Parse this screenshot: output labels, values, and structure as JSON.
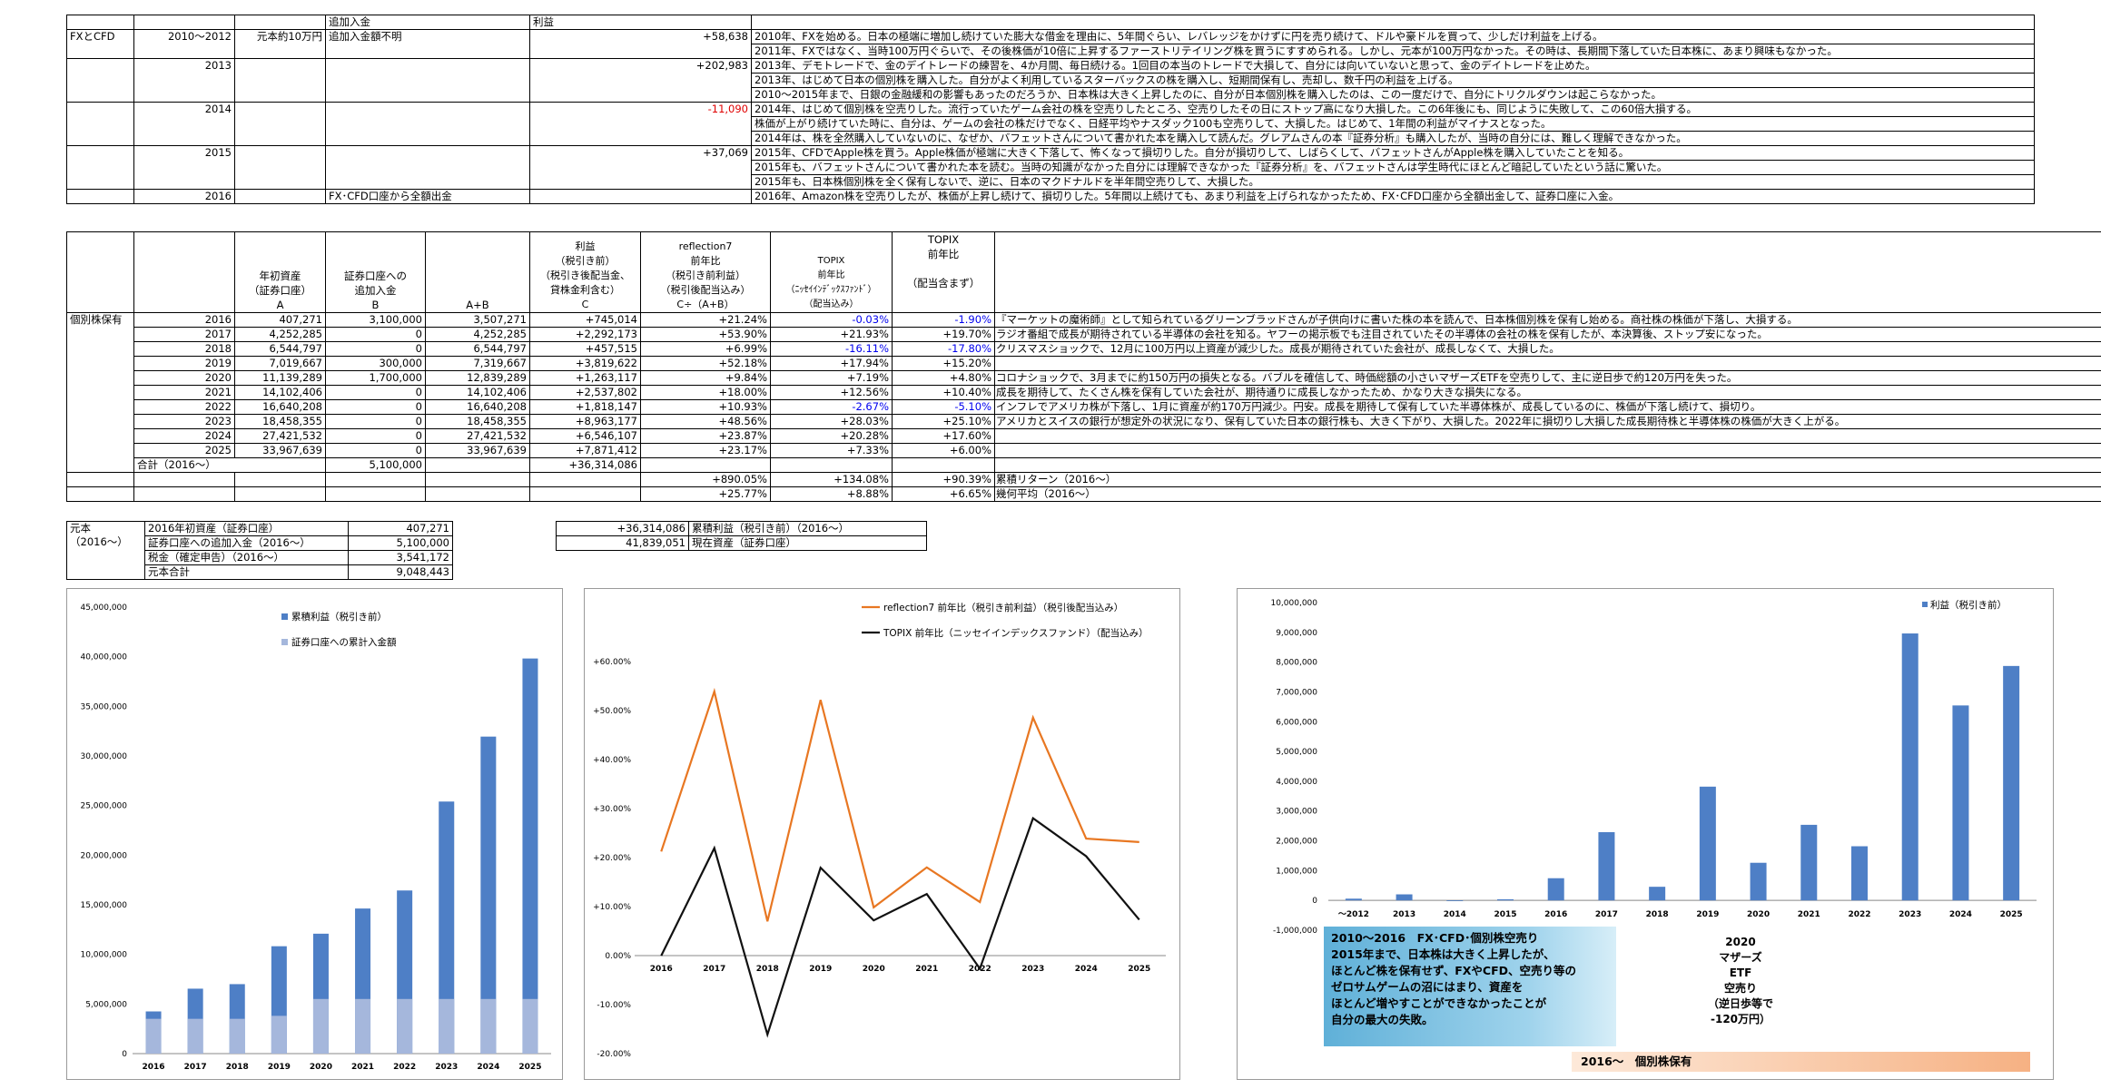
{
  "t1": {
    "head": {
      "a": "追加入金",
      "b": "利益"
    },
    "rows": [
      {
        "cat": "FXとCFD",
        "year": "2010～2012",
        "base": "元本約10万円",
        "extra": "追加入金額不明",
        "profit": "+58,638",
        "lines": [
          "2010年、FXを始める。日本の極端に増加し続けていた膨大な借金を理由に、5年間ぐらい、レバレッジをかけずに円を売り続けて、ドルや豪ドルを買って、少しだけ利益を上げる。",
          "2011年、FXではなく、当時100万円ぐらいで、その後株価が10倍に上昇するファーストリテイリング株を買うにすすめられる。しかし、元本が100万円なかった。その時は、長期間下落していた日本株に、あまり興味もなかった。"
        ]
      },
      {
        "cat": "",
        "year": "2013",
        "base": "",
        "extra": "",
        "profit": "+202,983",
        "lines": [
          "2013年、デモトレードで、金のデイトレードの練習を、4か月間、毎日続ける。1回目の本当のトレードで大損して、自分には向いていないと思って、金のデイトレードを止めた。",
          "2013年、はじめて日本の個別株を購入した。自分がよく利用しているスターバックスの株を購入し、短期間保有し、売却し、数千円の利益を上げる。",
          "2010～2015年まで、日銀の金融緩和の影響もあったのだろうか、日本株は大きく上昇したのに、自分が日本個別株を購入したのは、この一度だけで、自分にトリクルダウンは起こらなかった。"
        ]
      },
      {
        "cat": "",
        "year": "2014",
        "base": "",
        "extra": "",
        "profit": "-11,090",
        "lines": [
          "2014年、はじめて個別株を空売りした。流行っていたゲーム会社の株を空売りしたところ、空売りしたその日にストップ高になり大損した。この6年後にも、同じように失敗して、この60倍大損する。",
          "株価が上がり続けていた時に、自分は、ゲームの会社の株だけでなく、日経平均やナスダック100も空売りして、大損した。はじめて、1年間の利益がマイナスとなった。",
          "2014年は、株を全然購入していないのに、なぜか、バフェットさんについて書かれた本を購入して読んだ。グレアムさんの本『証券分析』も購入したが、当時の自分には、難しく理解できなかった。"
        ]
      },
      {
        "cat": "",
        "year": "2015",
        "base": "",
        "extra": "",
        "profit": "+37,069",
        "lines": [
          "2015年、CFDでApple株を買う。Apple株価が極端に大きく下落して、怖くなって損切りした。自分が損切りして、しばらくして、バフェットさんがApple株を購入していたことを知る。",
          "2015年も、バフェットさんについて書かれた本を読む。当時の知識がなかった自分には理解できなかった『証券分析』を、バフェットさんは学生時代にほとんど暗記していたという話に驚いた。",
          "2015年も、日本株個別株を全く保有しないで、逆に、日本のマクドナルドを半年間空売りして、大損した。"
        ]
      },
      {
        "cat": "",
        "year": "2016",
        "base": "",
        "extra": "FX･CFD口座から全額出金",
        "profit": "",
        "lines": [
          "2016年、Amazon株を空売りしたが、株価が上昇し続けて、損切りした。5年間以上続けても、あまり利益を上げられなかったため、FX･CFD口座から全額出金して、証券口座に入金。"
        ]
      }
    ]
  },
  "t2": {
    "h": {
      "c1": "年初資産\n（証券口座）\nA",
      "c2": "証券口座への\n追加入金\nB",
      "c3": "A+B",
      "c4": "利益\n（税引き前）\n（税引き後配当金、\n貸株金利含む）\nC",
      "c5": "reflection7\n前年比\n（税引き前利益）\n（税引後配当込み）\nC÷（A+B）",
      "c6": "TOPIX\n前年比\n（ﾆｯｾｲｲﾝﾃﾞｯｸｽﾌｧﾝﾄﾞ）\n（配当込み）",
      "c7": "TOPIX\n前年比\n\n（配当含まず）"
    },
    "cat": "個別株保有",
    "rows": [
      {
        "y": "2016",
        "a": "407,271",
        "b": "3,100,000",
        "ab": "3,507,271",
        "c": "+745,014",
        "r7": "+21.24%",
        "tn": "-0.03%",
        "tx": "-1.90%",
        "note": "『マーケットの魔術師』として知られているグリーンブラッドさんが子供向けに書いた株の本を読んで、日本株個別株を保有し始める。商社株の株価が下落し、大損する。"
      },
      {
        "y": "2017",
        "a": "4,252,285",
        "b": "0",
        "ab": "4,252,285",
        "c": "+2,292,173",
        "r7": "+53.90%",
        "tn": "+21.93%",
        "tx": "+19.70%",
        "note": "ラジオ番組で成長が期待されている半導体の会社を知る。ヤフーの掲示板でも注目されていたその半導体の会社の株を保有したが、本決算後、ストップ安になった。"
      },
      {
        "y": "2018",
        "a": "6,544,797",
        "b": "0",
        "ab": "6,544,797",
        "c": "+457,515",
        "r7": "+6.99%",
        "tn": "-16.11%",
        "tx": "-17.80%",
        "note": "クリスマスショックで、12月に100万円以上資産が減少した。成長が期待されていた会社が、成長しなくて、大損した。"
      },
      {
        "y": "2019",
        "a": "7,019,667",
        "b": "300,000",
        "ab": "7,319,667",
        "c": "+3,819,622",
        "r7": "+52.18%",
        "tn": "+17.94%",
        "tx": "+15.20%",
        "note": ""
      },
      {
        "y": "2020",
        "a": "11,139,289",
        "b": "1,700,000",
        "ab": "12,839,289",
        "c": "+1,263,117",
        "r7": "+9.84%",
        "tn": "+7.19%",
        "tx": "+4.80%",
        "note": "コロナショックで、3月までに約150万円の損失となる。バブルを確信して、時価総額の小さいマザーズETFを空売りして、主に逆日歩で約120万円を失った。"
      },
      {
        "y": "2021",
        "a": "14,102,406",
        "b": "0",
        "ab": "14,102,406",
        "c": "+2,537,802",
        "r7": "+18.00%",
        "tn": "+12.56%",
        "tx": "+10.40%",
        "note": "成長を期待して、たくさん株を保有していた会社が、期待通りに成長しなかったため、かなり大きな損失になる。"
      },
      {
        "y": "2022",
        "a": "16,640,208",
        "b": "0",
        "ab": "16,640,208",
        "c": "+1,818,147",
        "r7": "+10.93%",
        "tn": "-2.67%",
        "tx": "-5.10%",
        "note": "インフレでアメリカ株が下落し、1月に資産が約170万円減少。円安。成長を期待して保有していた半導体株が、成長しているのに、株価が下落し続けて、損切り。"
      },
      {
        "y": "2023",
        "a": "18,458,355",
        "b": "0",
        "ab": "18,458,355",
        "c": "+8,963,177",
        "r7": "+48.56%",
        "tn": "+28.03%",
        "tx": "+25.10%",
        "note": "アメリカとスイスの銀行が想定外の状況になり、保有していた日本の銀行株も、大きく下がり、大損した。2022年に損切りし大損した成長期待株と半導体株の株価が大きく上がる。"
      },
      {
        "y": "2024",
        "a": "27,421,532",
        "b": "0",
        "ab": "27,421,532",
        "c": "+6,546,107",
        "r7": "+23.87%",
        "tn": "+20.28%",
        "tx": "+17.60%",
        "note": ""
      },
      {
        "y": "2025",
        "a": "33,967,639",
        "b": "0",
        "ab": "33,967,639",
        "c": "+7,871,412",
        "r7": "+23.17%",
        "tn": "+7.33%",
        "tx": "+6.00%",
        "note": ""
      }
    ],
    "total": {
      "label": "合計（2016～）",
      "b": "5,100,000",
      "c": "+36,314,086"
    },
    "cum": {
      "r7": "+890.05%",
      "tn": "+134.08%",
      "tx": "+90.39%",
      "note": "累積リターン（2016～）"
    },
    "avg": {
      "r7": "+25.77%",
      "tn": "+8.88%",
      "tx": "+6.65%",
      "note": "幾何平均（2016～）"
    }
  },
  "t3": {
    "label": "元本\n（2016～）",
    "rows": [
      [
        "2016年初資産（証券口座）",
        "407,271"
      ],
      [
        "証券口座への追加入金（2016～）",
        "5,100,000"
      ],
      [
        "税金（確定申告）（2016～）",
        "3,541,172"
      ],
      [
        "元本合計",
        "9,048,443"
      ]
    ]
  },
  "t4": {
    "rows": [
      [
        "+36,314,086",
        "累積利益（税引き前）（2016～）"
      ],
      [
        "41,839,051",
        "現在資産（証券口座）"
      ]
    ]
  },
  "c1": {
    "chart_data": {
      "type": "bar",
      "categories": [
        "2016",
        "2017",
        "2018",
        "2019",
        "2020",
        "2021",
        "2022",
        "2023",
        "2024",
        "2025"
      ],
      "series": [
        {
          "name": "累積利益（税引き前）",
          "values": [
            4252285,
            6544797,
            7002312,
            10821934,
            12085051,
            14622853,
            16441000,
            25404177,
            31950284,
            39821696
          ],
          "color": "#4e7fc6"
        },
        {
          "name": "証券口座への累計入金額",
          "values": [
            3507271,
            3507271,
            3507271,
            3807271,
            5507271,
            5507271,
            5507271,
            5507271,
            5507271,
            5507271
          ],
          "color": "#a5b7dc"
        }
      ],
      "ylim": [
        0,
        45000000
      ],
      "yticks": [
        "0",
        "5,000,000",
        "10,000,000",
        "15,000,000",
        "20,000,000",
        "25,000,000",
        "30,000,000",
        "35,000,000",
        "40,000,000",
        "45,000,000"
      ]
    }
  },
  "c2": {
    "chart_data": {
      "type": "line",
      "categories": [
        "2016",
        "2017",
        "2018",
        "2019",
        "2020",
        "2021",
        "2022",
        "2023",
        "2024",
        "2025"
      ],
      "series": [
        {
          "name": "reflection7 前年比（税引き前利益）（税引後配当込み）",
          "values": [
            21.24,
            53.9,
            6.99,
            52.18,
            9.84,
            18.0,
            10.93,
            48.56,
            23.87,
            23.17
          ],
          "color": "#e87722"
        },
        {
          "name": "TOPIX 前年比（ニッセイインデックスファンド）（配当込み）",
          "values": [
            -0.03,
            21.93,
            -16.11,
            17.94,
            7.19,
            12.56,
            -2.67,
            28.03,
            20.28,
            7.33
          ],
          "color": "#111111"
        }
      ],
      "ylim": [
        -20,
        60
      ],
      "yticks": [
        "-20.00%",
        "-10.00%",
        "0.00%",
        "+10.00%",
        "+20.00%",
        "+30.00%",
        "+40.00%",
        "+50.00%",
        "+60.00%"
      ]
    }
  },
  "c3": {
    "chart_data": {
      "type": "bar",
      "categories": [
        "～2012",
        "2013",
        "2014",
        "2015",
        "2016",
        "2017",
        "2018",
        "2019",
        "2020",
        "2021",
        "2022",
        "2023",
        "2024",
        "2025"
      ],
      "series": [
        {
          "name": "利益（税引き前）",
          "values": [
            58638,
            202983,
            -11090,
            37069,
            745014,
            2292173,
            457515,
            3819622,
            1263117,
            2537802,
            1818147,
            8963177,
            6546107,
            7871412
          ],
          "color": "#4e7fc6"
        }
      ],
      "ylim": [
        -1000000,
        10000000
      ],
      "yticks": [
        "-1,000,000",
        "0",
        "1,000,000",
        "2,000,000",
        "3,000,000",
        "4,000,000",
        "5,000,000",
        "6,000,000",
        "7,000,000",
        "8,000,000",
        "9,000,000",
        "10,000,000"
      ]
    },
    "note1": [
      "2010～2016　FX･CFD･個別株空売り",
      "2015年まで、日本株は大きく上昇したが、",
      "ほとんど株を保有せず、FXやCFD、空売り等の",
      "ゼロサムゲームの沼にはまり、資産を",
      "ほとんど増やすことができなかったことが",
      "自分の最大の失敗。"
    ],
    "note2": [
      "2020",
      "マザーズ",
      "ETF",
      "空売り",
      "（逆日歩等で",
      "-120万円）"
    ],
    "note3": "2016～　個別株保有"
  }
}
